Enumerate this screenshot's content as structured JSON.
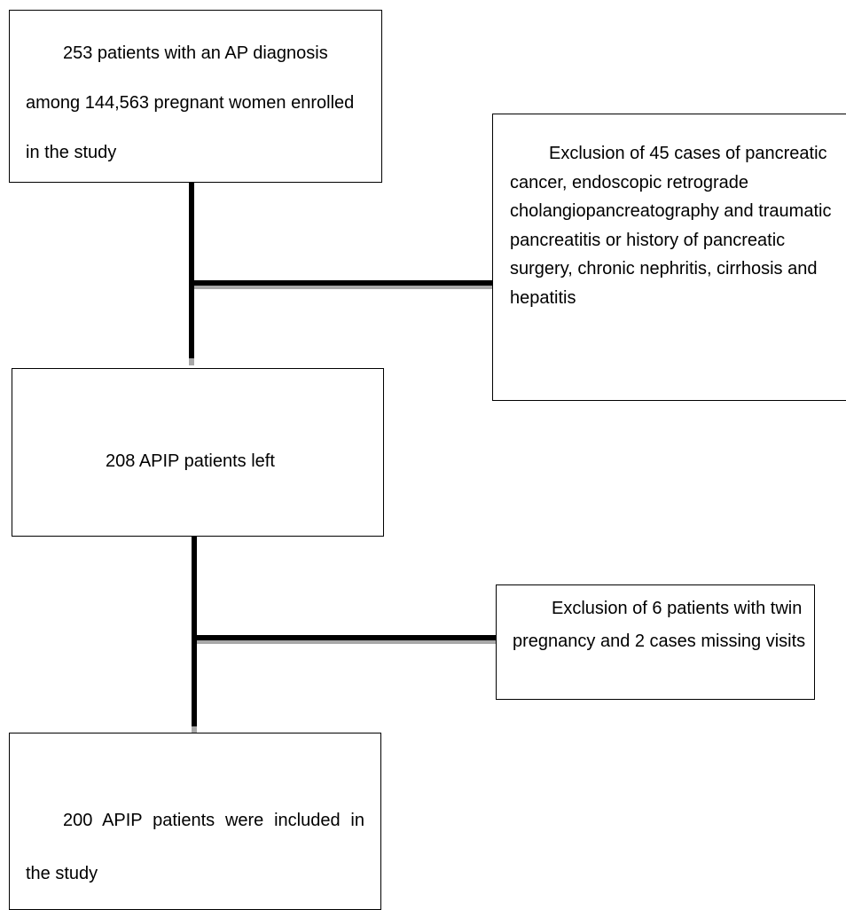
{
  "boxes": {
    "enrolled": "253 patients with an AP diagnosis among 144,563 pregnant women enrolled in the study",
    "exclusion_1": "Exclusion of 45 cases of pancreatic cancer, endoscopic retrograde cholangiopancreatography and traumatic pancreatitis or history of pancreatic surgery, chronic nephritis, cirrhosis and hepatitis",
    "remaining": "208 APIP patients left",
    "exclusion_2": "Exclusion of 6 patients with twin pregnancy and 2 cases missing visits",
    "included": "200 APIP patients were included in the study"
  },
  "colors": {
    "line": "#000000",
    "line_shadow": "#a8a8a8",
    "box_border": "#000000",
    "background": "#ffffff"
  }
}
